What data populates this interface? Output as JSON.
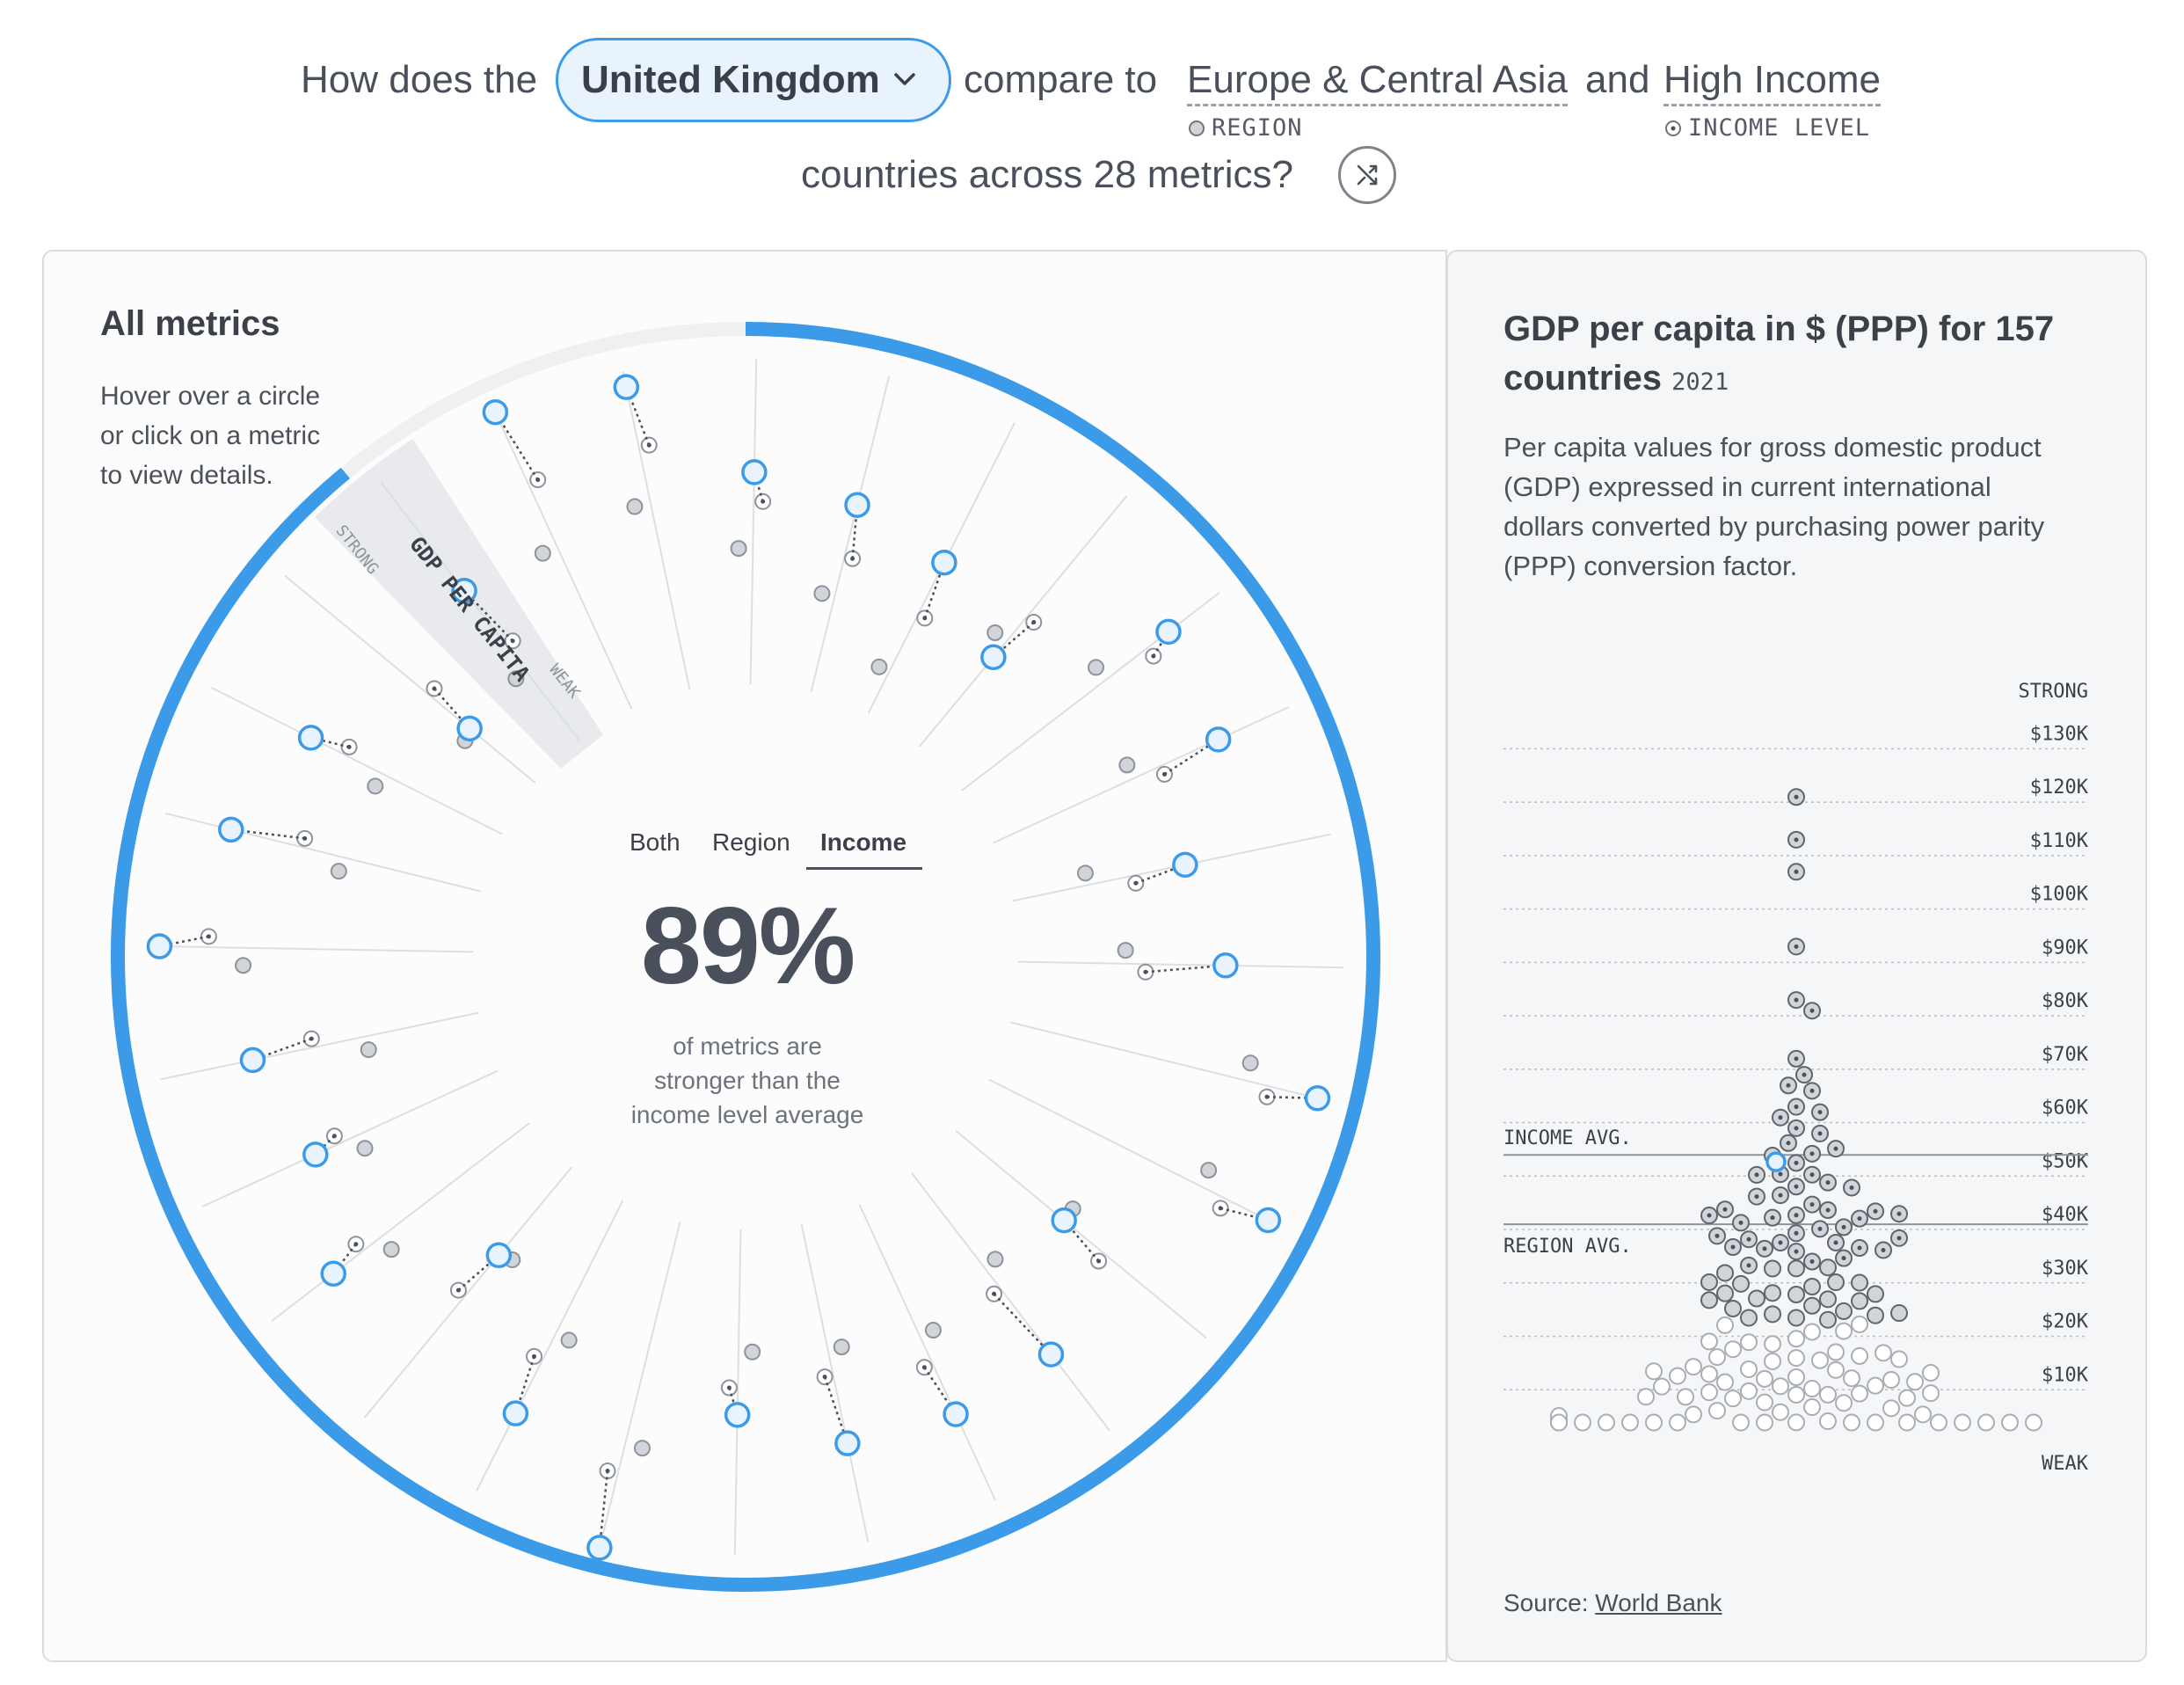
{
  "header": {
    "prefix": "How does the",
    "country": "United Kingdom",
    "compare_to": "compare to",
    "region": "Europe & Central Asia",
    "and": "and",
    "income": "High Income",
    "region_tag": "REGION",
    "income_tag": "INCOME LEVEL",
    "line2": "countries across 28 metrics?"
  },
  "left_panel": {
    "title": "All metrics",
    "hint": [
      "Hover over a circle",
      "or click on a metric",
      "to view details."
    ],
    "tabs": [
      "Both",
      "Region",
      "Income"
    ],
    "active_tab": "Income",
    "percent": "89%",
    "caption": [
      "of metrics are",
      "stronger than the",
      "income level average"
    ],
    "highlight_metric": "GDP PER CAPITA",
    "strong_label": "STRONG",
    "weak_label": "WEAK",
    "share_stronger": 0.89
  },
  "right_panel": {
    "title": "GDP per capita in $ (PPP) for 157 countries",
    "year": "2021",
    "description": [
      "Per capita values for gross domestic product",
      "(GDP) expressed in current international",
      "dollars converted by purchasing power parity",
      "(PPP) conversion factor."
    ],
    "source_prefix": "Source:",
    "source_link": "World Bank",
    "income_avg_label": "INCOME AVG.",
    "region_avg_label": "REGION AVG."
  },
  "chart_data": {
    "type": "scatter",
    "title": "GDP per capita in $ (PPP) for 157 countries",
    "y_ticks": [
      "$130K",
      "$120K",
      "$110K",
      "$100K",
      "$90K",
      "$80K",
      "$70K",
      "$60K",
      "$50K",
      "$40K",
      "$30K",
      "$20K",
      "$10K"
    ],
    "y_top_label": "STRONG",
    "y_bottom_label": "WEAK",
    "ylim": [
      0,
      135000
    ],
    "income_avg": 51000,
    "region_avg": 38000,
    "highlight": {
      "name": "United Kingdom",
      "value": 49700
    },
    "colors": {
      "highlight": "#3c9be8",
      "dot": "#d1d4d8",
      "stroke": "#8d939b"
    }
  },
  "colors": {
    "accent": "#3c9be8",
    "accent_light": "#e8f3fd",
    "ring_bg": "#eef0f2"
  }
}
